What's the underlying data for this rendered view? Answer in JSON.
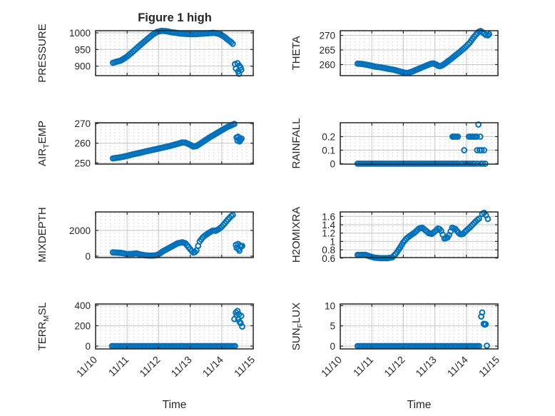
{
  "title": "Figure 1 high",
  "xlabel": "Time",
  "figure": {
    "background": "#ffffff",
    "marker_color": "#0072BD",
    "axis_color": "#262626",
    "grid_color": "#c7c7c7",
    "minor_dot_color": "#d2d2d2",
    "text_color": "#262626",
    "grid": true,
    "minor_grid": true,
    "legend": "none"
  },
  "xaxis": {
    "lim": [
      10,
      15
    ],
    "ticks": [
      10,
      11,
      12,
      13,
      14,
      15
    ],
    "tick_labels": [
      "11/10",
      "11/11",
      "11/12",
      "11/13",
      "11/14",
      "11/15"
    ]
  },
  "sample_step_days": 0.05,
  "chart_data": [
    {
      "id": "pressure",
      "type": "scatter",
      "ylabel": {
        "pre": "PRESSURE",
        "sub": "",
        "post": ""
      },
      "ylim": [
        871.5,
        1006.5
      ],
      "yticks": [
        900,
        950,
        1000
      ],
      "ytick_labels": [
        "900",
        "950",
        "1000"
      ],
      "series_anchors": [
        [
          10.55,
          910
        ],
        [
          10.8,
          917
        ],
        [
          11.0,
          929
        ],
        [
          11.2,
          945
        ],
        [
          11.35,
          958
        ],
        [
          11.5,
          970
        ],
        [
          11.65,
          982
        ],
        [
          11.8,
          994
        ],
        [
          11.95,
          1003
        ],
        [
          12.1,
          1006
        ],
        [
          12.25,
          1005
        ],
        [
          12.4,
          1002
        ],
        [
          12.55,
          1000
        ],
        [
          12.7,
          998
        ],
        [
          12.85,
          997
        ],
        [
          13.0,
          996
        ],
        [
          13.15,
          996
        ],
        [
          13.3,
          997
        ],
        [
          13.45,
          998
        ],
        [
          13.6,
          999
        ],
        [
          13.75,
          1000
        ],
        [
          13.88,
          998
        ],
        [
          14.0,
          993
        ],
        [
          14.1,
          987
        ],
        [
          14.2,
          979
        ],
        [
          14.3,
          972
        ],
        [
          14.36,
          966
        ]
      ],
      "scatter_points": [
        [
          14.42,
          906
        ],
        [
          14.5,
          909
        ],
        [
          14.56,
          901
        ],
        [
          14.45,
          893
        ],
        [
          14.6,
          896
        ],
        [
          14.52,
          884
        ],
        [
          14.62,
          889
        ],
        [
          14.55,
          877
        ]
      ]
    },
    {
      "id": "theta",
      "type": "scatter",
      "ylabel": {
        "pre": "THETA",
        "sub": "",
        "post": ""
      },
      "ylim": [
        256.2,
        271.6
      ],
      "yticks": [
        260,
        265,
        270
      ],
      "ytick_labels": [
        "260",
        "265",
        "270"
      ],
      "series_anchors": [
        [
          10.55,
          260.3
        ],
        [
          10.7,
          260.2
        ],
        [
          10.9,
          259.8
        ],
        [
          11.1,
          259.3
        ],
        [
          11.3,
          259.0
        ],
        [
          11.5,
          258.6
        ],
        [
          11.7,
          258.2
        ],
        [
          11.9,
          257.6
        ],
        [
          12.05,
          257.2
        ],
        [
          12.15,
          257.1
        ],
        [
          12.3,
          257.7
        ],
        [
          12.5,
          258.6
        ],
        [
          12.7,
          259.5
        ],
        [
          12.85,
          260.2
        ],
        [
          12.95,
          260.4
        ],
        [
          13.05,
          260.0
        ],
        [
          13.12,
          259.4
        ],
        [
          13.22,
          259.6
        ],
        [
          13.35,
          260.6
        ],
        [
          13.5,
          261.8
        ],
        [
          13.65,
          263.1
        ],
        [
          13.8,
          264.4
        ],
        [
          13.95,
          265.8
        ],
        [
          14.1,
          267.4
        ],
        [
          14.25,
          269.6
        ],
        [
          14.38,
          271.2
        ],
        [
          14.45,
          271.5
        ],
        [
          14.52,
          271.0
        ]
      ],
      "scatter_points": [
        [
          14.56,
          270.6
        ],
        [
          14.62,
          270.1
        ],
        [
          14.68,
          270.0
        ],
        [
          14.72,
          270.4
        ]
      ]
    },
    {
      "id": "air-temp",
      "type": "scatter",
      "ylabel": {
        "pre": "AIR",
        "sub": "T",
        "post": "EMP"
      },
      "ylim": [
        249.4,
        270.4
      ],
      "yticks": [
        250,
        260,
        270
      ],
      "ytick_labels": [
        "250",
        "260",
        "270"
      ],
      "series_anchors": [
        [
          10.55,
          252.3
        ],
        [
          10.8,
          252.9
        ],
        [
          11.0,
          253.6
        ],
        [
          11.2,
          254.4
        ],
        [
          11.4,
          255.1
        ],
        [
          11.6,
          255.9
        ],
        [
          11.8,
          256.6
        ],
        [
          12.0,
          257.3
        ],
        [
          12.2,
          258.0
        ],
        [
          12.4,
          258.8
        ],
        [
          12.6,
          259.7
        ],
        [
          12.75,
          260.4
        ],
        [
          12.85,
          260.3
        ],
        [
          13.0,
          259.2
        ],
        [
          13.1,
          258.3
        ],
        [
          13.2,
          258.6
        ],
        [
          13.32,
          259.8
        ],
        [
          13.45,
          261.2
        ],
        [
          13.6,
          262.8
        ],
        [
          13.8,
          264.7
        ],
        [
          14.0,
          266.6
        ],
        [
          14.2,
          268.4
        ],
        [
          14.4,
          269.8
        ]
      ],
      "scatter_points": [
        [
          14.47,
          262.9
        ],
        [
          14.52,
          263.3
        ],
        [
          14.56,
          262.1
        ],
        [
          14.5,
          261.3
        ],
        [
          14.6,
          261.7
        ],
        [
          14.63,
          262.4
        ],
        [
          14.57,
          260.9
        ]
      ]
    },
    {
      "id": "rainfall",
      "type": "scatter",
      "ylabel": {
        "pre": "RAINFALL",
        "sub": "",
        "post": ""
      },
      "ylim": [
        -0.003,
        0.303
      ],
      "yticks": [
        0,
        0.1,
        0.2
      ],
      "ytick_labels": [
        "0",
        "0.1",
        "0.2"
      ],
      "series_anchors": [
        [
          10.55,
          0
        ],
        [
          13.78,
          0
        ]
      ],
      "scatter_points": [
        [
          13.84,
          0
        ],
        [
          13.9,
          0
        ],
        [
          13.96,
          0
        ],
        [
          14.02,
          0
        ],
        [
          14.08,
          0
        ],
        [
          14.14,
          0
        ],
        [
          14.2,
          0
        ],
        [
          14.26,
          0
        ],
        [
          14.35,
          0
        ],
        [
          14.45,
          0
        ],
        [
          14.52,
          0
        ],
        [
          14.6,
          0
        ],
        [
          13.56,
          0.2
        ],
        [
          13.6,
          0.2
        ],
        [
          13.64,
          0.2
        ],
        [
          13.68,
          0.2
        ],
        [
          13.73,
          0.2
        ],
        [
          13.93,
          0.1
        ],
        [
          14.08,
          0.2
        ],
        [
          14.13,
          0.2
        ],
        [
          14.18,
          0.2
        ],
        [
          14.23,
          0.2
        ],
        [
          14.28,
          0.2
        ],
        [
          14.33,
          0.2
        ],
        [
          14.44,
          0.2
        ],
        [
          14.38,
          0.29
        ],
        [
          14.34,
          0.1
        ],
        [
          14.42,
          0.1
        ],
        [
          14.48,
          0.1
        ],
        [
          14.56,
          0.1
        ]
      ]
    },
    {
      "id": "mixdepth",
      "type": "scatter",
      "ylabel": {
        "pre": "MIXDEPTH",
        "sub": "",
        "post": ""
      },
      "ylim": [
        -110,
        3440
      ],
      "yticks": [
        0,
        2000
      ],
      "ytick_labels": [
        "0",
        "2000"
      ],
      "series_anchors": [
        [
          10.55,
          300
        ],
        [
          10.8,
          260
        ],
        [
          11.0,
          160
        ],
        [
          11.15,
          180
        ],
        [
          11.3,
          210
        ],
        [
          11.45,
          120
        ],
        [
          11.6,
          60
        ],
        [
          11.75,
          50
        ],
        [
          11.9,
          60
        ],
        [
          12.0,
          150
        ],
        [
          12.15,
          400
        ],
        [
          12.3,
          600
        ],
        [
          12.45,
          800
        ],
        [
          12.6,
          1000
        ],
        [
          12.75,
          1080
        ],
        [
          12.85,
          1000
        ],
        [
          12.95,
          700
        ],
        [
          13.05,
          400
        ],
        [
          13.12,
          240
        ],
        [
          13.2,
          450
        ],
        [
          13.3,
          1150
        ],
        [
          13.42,
          1520
        ],
        [
          13.55,
          1750
        ],
        [
          13.65,
          1900
        ],
        [
          13.72,
          2000
        ],
        [
          13.8,
          1970
        ],
        [
          13.9,
          2090
        ],
        [
          14.0,
          2290
        ],
        [
          14.1,
          2560
        ],
        [
          14.2,
          2860
        ],
        [
          14.3,
          3120
        ],
        [
          14.38,
          3260
        ]
      ],
      "scatter_points": [
        [
          14.45,
          880
        ],
        [
          14.52,
          950
        ],
        [
          14.58,
          820
        ],
        [
          14.47,
          650
        ],
        [
          14.62,
          740
        ],
        [
          14.53,
          560
        ],
        [
          14.65,
          800
        ],
        [
          14.56,
          430
        ]
      ]
    },
    {
      "id": "h2omixra",
      "type": "scatter",
      "ylabel": {
        "pre": "H2OMIXRA",
        "sub": "",
        "post": ""
      },
      "ylim": [
        0.613,
        1.708
      ],
      "yticks": [
        0.6,
        0.8,
        1,
        1.2,
        1.4,
        1.6
      ],
      "ytick_labels": [
        "0.6",
        "0.8",
        "1",
        "1.2",
        "1.4",
        "1.6"
      ],
      "series_anchors": [
        [
          10.55,
          0.68
        ],
        [
          10.8,
          0.68
        ],
        [
          10.95,
          0.64
        ],
        [
          11.1,
          0.61
        ],
        [
          11.3,
          0.6
        ],
        [
          11.5,
          0.6
        ],
        [
          11.65,
          0.62
        ],
        [
          11.78,
          0.72
        ],
        [
          11.9,
          0.86
        ],
        [
          12.0,
          0.98
        ],
        [
          12.1,
          1.07
        ],
        [
          12.2,
          1.13
        ],
        [
          12.35,
          1.21
        ],
        [
          12.5,
          1.31
        ],
        [
          12.6,
          1.33
        ],
        [
          12.7,
          1.27
        ],
        [
          12.8,
          1.2
        ],
        [
          12.9,
          1.18
        ],
        [
          13.0,
          1.24
        ],
        [
          13.1,
          1.31
        ],
        [
          13.18,
          1.29
        ],
        [
          13.3,
          1.07
        ],
        [
          13.42,
          1.1
        ],
        [
          13.55,
          1.33
        ],
        [
          13.65,
          1.3
        ],
        [
          13.78,
          1.18
        ],
        [
          13.88,
          1.17
        ],
        [
          13.98,
          1.25
        ],
        [
          14.1,
          1.33
        ],
        [
          14.22,
          1.42
        ],
        [
          14.32,
          1.5
        ],
        [
          14.42,
          1.56
        ]
      ],
      "scatter_points": [
        [
          14.5,
          1.66
        ],
        [
          14.56,
          1.69
        ],
        [
          14.62,
          1.63
        ],
        [
          14.68,
          1.54
        ]
      ]
    },
    {
      "id": "terr-msl",
      "type": "scatter",
      "ylabel": {
        "pre": "TERR",
        "sub": "M",
        "post": "SL"
      },
      "ylim": [
        -28,
        414
      ],
      "yticks": [
        0,
        200,
        400
      ],
      "ytick_labels": [
        "0",
        "200",
        "400"
      ],
      "series_anchors": [
        [
          10.52,
          0
        ],
        [
          14.45,
          0
        ]
      ],
      "scatter_points": [
        [
          14.4,
          265
        ],
        [
          14.45,
          330
        ],
        [
          14.5,
          345
        ],
        [
          14.47,
          305
        ],
        [
          14.55,
          312
        ],
        [
          14.52,
          262
        ],
        [
          14.57,
          238
        ],
        [
          14.62,
          296
        ],
        [
          14.6,
          225
        ],
        [
          14.65,
          192
        ]
      ]
    },
    {
      "id": "sun-flux",
      "type": "scatter",
      "ylabel": {
        "pre": "SUN",
        "sub": "F",
        "post": "LUX"
      },
      "ylim": [
        -0.7,
        10.4
      ],
      "yticks": [
        0,
        5,
        10
      ],
      "ytick_labels": [
        "0",
        "5",
        "10"
      ],
      "series_anchors": [
        [
          10.55,
          0
        ],
        [
          14.4,
          0
        ]
      ],
      "scatter_points": [
        [
          14.47,
          7.3
        ],
        [
          14.5,
          8.3
        ],
        [
          14.55,
          5.5
        ],
        [
          14.58,
          5.3
        ],
        [
          14.61,
          5.4
        ],
        [
          14.65,
          0.1
        ]
      ]
    }
  ]
}
